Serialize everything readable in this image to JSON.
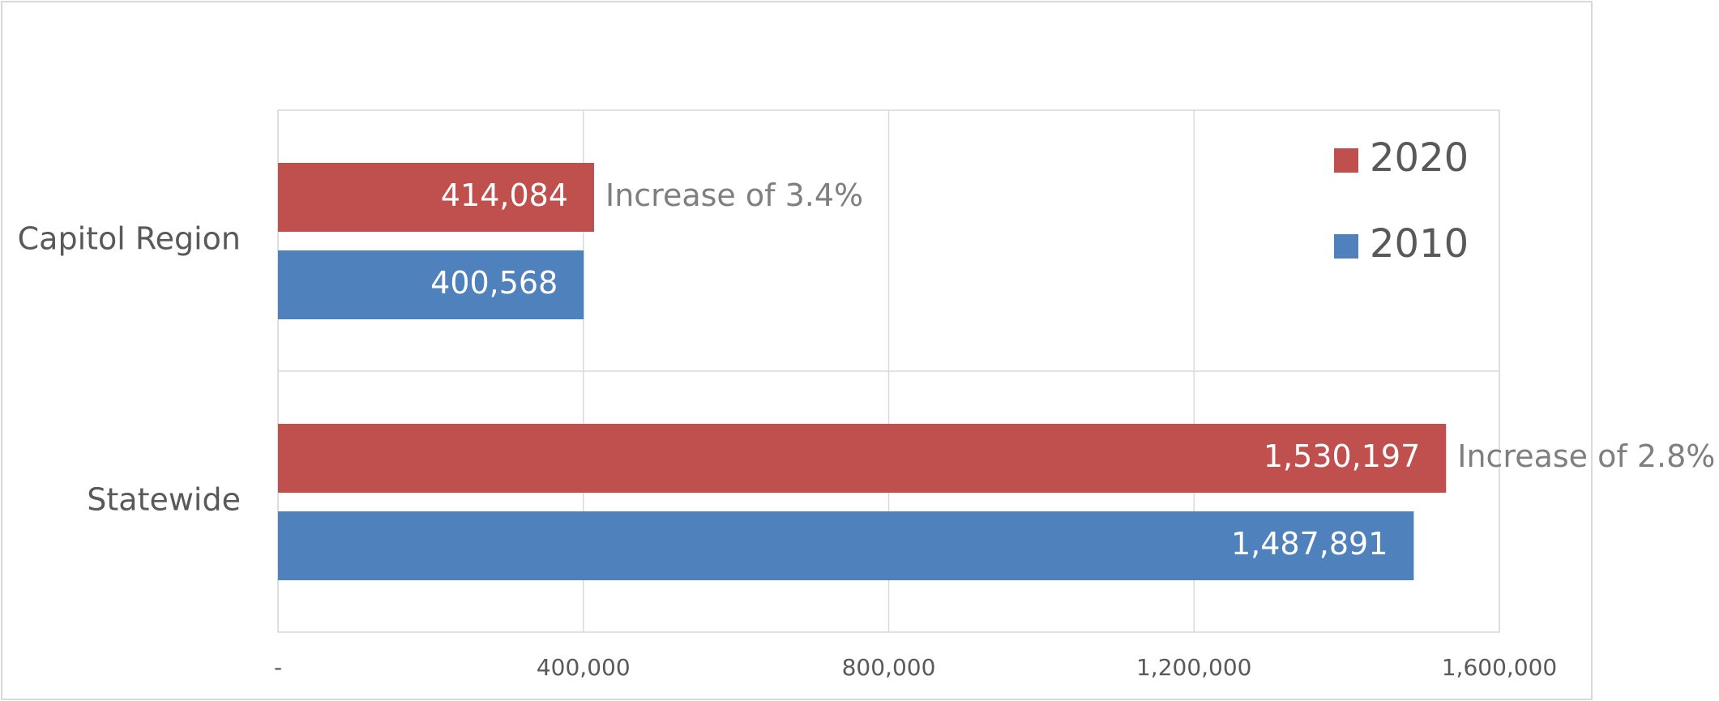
{
  "chart_data": {
    "type": "bar",
    "orientation": "horizontal",
    "categories": [
      "Capitol Region",
      "Statewide"
    ],
    "series": [
      {
        "name": "2020",
        "color": "#c0504d",
        "values": [
          414084,
          1530197
        ],
        "value_labels": [
          "414,084",
          "1,530,197"
        ]
      },
      {
        "name": "2010",
        "color": "#4f81bd",
        "values": [
          400568,
          1487891
        ],
        "value_labels": [
          "400,568",
          "1,487,891"
        ]
      }
    ],
    "annotations": [
      "Increase of 3.4%",
      "Increase of 2.8%"
    ],
    "xlim": [
      0,
      1600000
    ],
    "xticks": [
      {
        "value": 0,
        "label": "-"
      },
      {
        "value": 400000,
        "label": "400,000"
      },
      {
        "value": 800000,
        "label": "800,000"
      },
      {
        "value": 1200000,
        "label": "1,200,000"
      },
      {
        "value": 1600000,
        "label": "1,600,000"
      }
    ],
    "grid": true,
    "legend": "top-right"
  }
}
